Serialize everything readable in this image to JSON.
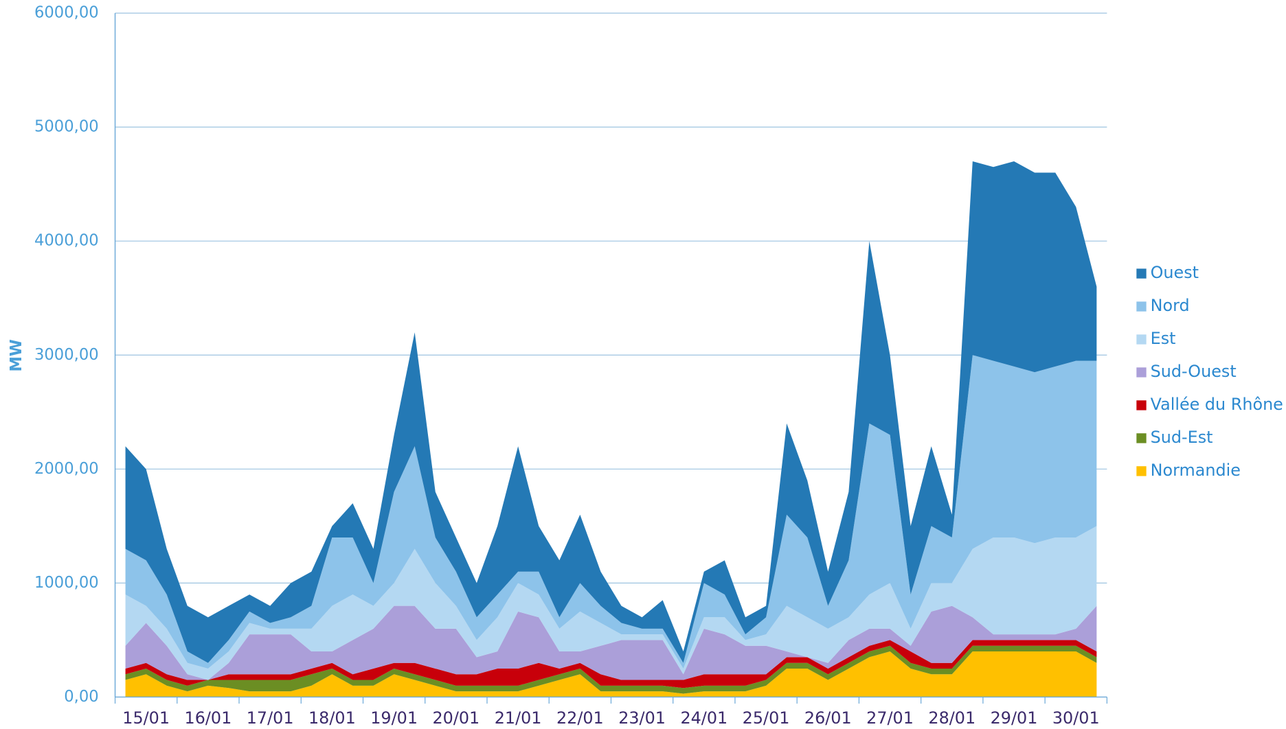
{
  "chart_data": {
    "type": "stacked_area",
    "y_label": "MW",
    "categories": [
      null,
      "15/01",
      null,
      null,
      "16/01",
      null,
      null,
      "17/01",
      null,
      null,
      "18/01",
      null,
      null,
      "19/01",
      null,
      null,
      "20/01",
      null,
      null,
      "21/01",
      null,
      null,
      "22/01",
      null,
      null,
      "23/01",
      null,
      null,
      "24/01",
      null,
      null,
      "25/01",
      null,
      null,
      "26/01",
      null,
      null,
      "27/01",
      null,
      null,
      "28/01",
      null,
      null,
      "29/01",
      null,
      null,
      "30/01",
      null
    ],
    "ylim": [
      0,
      6000
    ],
    "yticks": [
      {
        "value": 0,
        "label": "0,00"
      },
      {
        "value": 1000,
        "label": "1000,00"
      },
      {
        "value": 2000,
        "label": "2000,00"
      },
      {
        "value": 3000,
        "label": "3000,00"
      },
      {
        "value": 4000,
        "label": "4000,00"
      },
      {
        "value": 5000,
        "label": "5000,00"
      },
      {
        "value": 6000,
        "label": "6000,00"
      }
    ],
    "grid": true,
    "legend": "right",
    "series": [
      {
        "name": "Normandie",
        "color": "#ffc000",
        "values": [
          150,
          200,
          100,
          50,
          100,
          80,
          50,
          50,
          50,
          100,
          200,
          100,
          100,
          200,
          150,
          100,
          50,
          50,
          50,
          50,
          100,
          150,
          200,
          50,
          50,
          50,
          50,
          30,
          50,
          50,
          50,
          100,
          250,
          250,
          150,
          250,
          350,
          400,
          250,
          200,
          200,
          400,
          400,
          400,
          400,
          400,
          400,
          300
        ]
      },
      {
        "name": "Sud-Est",
        "color": "#6b8e23",
        "values": [
          50,
          50,
          50,
          50,
          50,
          70,
          100,
          100,
          100,
          100,
          50,
          50,
          50,
          50,
          50,
          50,
          50,
          50,
          50,
          50,
          50,
          50,
          50,
          50,
          50,
          50,
          50,
          50,
          50,
          50,
          50,
          50,
          50,
          50,
          50,
          50,
          50,
          50,
          50,
          50,
          50,
          50,
          50,
          50,
          50,
          50,
          50,
          50
        ]
      },
      {
        "name": "Vallée du Rhône",
        "color": "#c8000a",
        "values": [
          50,
          50,
          50,
          50,
          0,
          50,
          50,
          50,
          50,
          50,
          50,
          50,
          100,
          50,
          100,
          100,
          100,
          100,
          150,
          150,
          150,
          50,
          50,
          100,
          50,
          50,
          50,
          70,
          100,
          100,
          100,
          50,
          50,
          50,
          50,
          50,
          50,
          50,
          100,
          50,
          50,
          50,
          50,
          50,
          50,
          50,
          50,
          50
        ]
      },
      {
        "name": "Sud-Ouest",
        "color": "#ab9fd9",
        "values": [
          200,
          350,
          250,
          50,
          0,
          100,
          350,
          350,
          350,
          150,
          100,
          300,
          350,
          500,
          500,
          350,
          400,
          150,
          150,
          500,
          400,
          150,
          100,
          250,
          350,
          350,
          350,
          50,
          400,
          350,
          250,
          250,
          50,
          0,
          50,
          150,
          150,
          100,
          50,
          450,
          500,
          200,
          50,
          50,
          50,
          50,
          100,
          400
        ]
      },
      {
        "name": "Est",
        "color": "#b4d8f2",
        "values": [
          450,
          150,
          150,
          100,
          100,
          100,
          100,
          50,
          50,
          200,
          400,
          400,
          200,
          200,
          500,
          400,
          200,
          150,
          300,
          250,
          200,
          200,
          350,
          200,
          50,
          50,
          50,
          50,
          100,
          150,
          50,
          100,
          400,
          350,
          300,
          200,
          300,
          400,
          150,
          250,
          200,
          600,
          850,
          850,
          800,
          850,
          800,
          700
        ]
      },
      {
        "name": "Nord",
        "color": "#8dc3ea",
        "values": [
          400,
          400,
          300,
          100,
          50,
          100,
          100,
          50,
          100,
          200,
          600,
          500,
          200,
          800,
          900,
          400,
          300,
          200,
          200,
          100,
          200,
          100,
          250,
          150,
          100,
          50,
          50,
          50,
          300,
          200,
          50,
          150,
          800,
          700,
          200,
          500,
          1500,
          1300,
          300,
          500,
          400,
          1700,
          1550,
          1500,
          1500,
          1500,
          1550,
          1450
        ]
      },
      {
        "name": "Ouest",
        "color": "#2479b5",
        "values": [
          900,
          800,
          400,
          400,
          400,
          300,
          150,
          150,
          300,
          300,
          100,
          300,
          300,
          500,
          1000,
          400,
          300,
          300,
          600,
          1100,
          400,
          500,
          600,
          300,
          150,
          100,
          250,
          100,
          100,
          300,
          150,
          100,
          800,
          500,
          300,
          600,
          1600,
          700,
          600,
          700,
          200,
          1700,
          1700,
          1800,
          1750,
          1700,
          1350,
          650
        ]
      }
    ]
  }
}
